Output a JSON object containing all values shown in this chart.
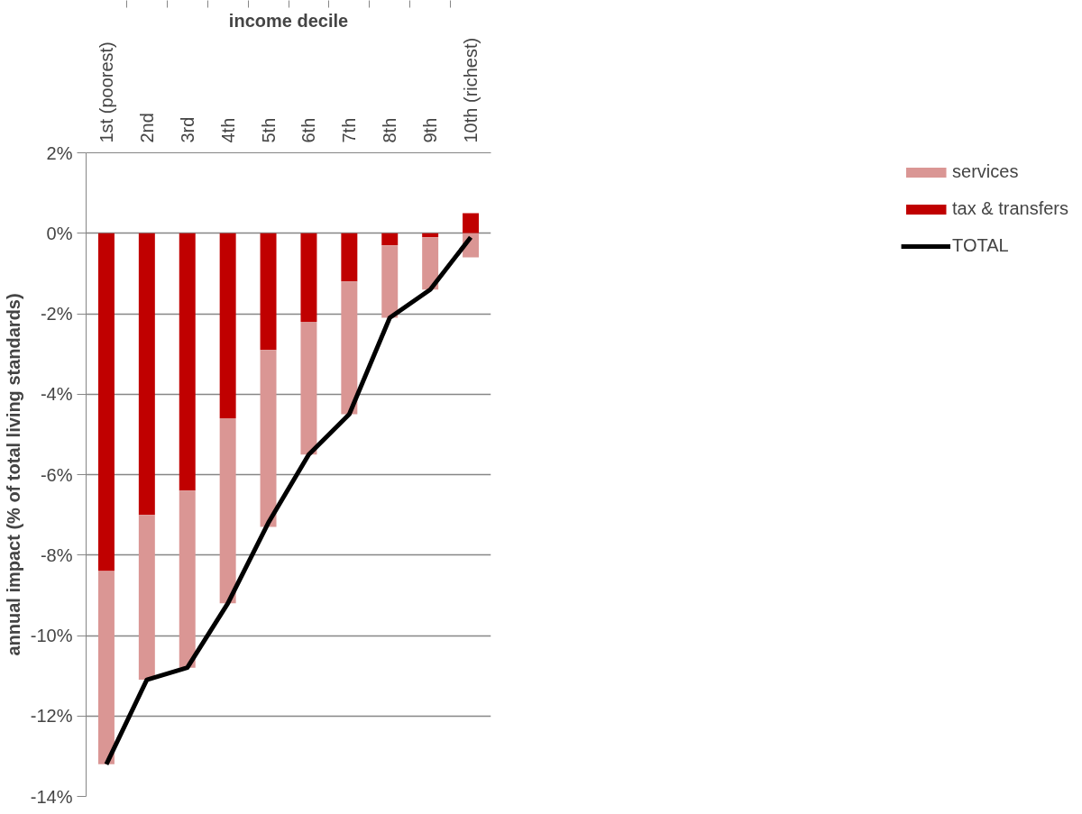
{
  "chart_data": {
    "type": "bar",
    "stacked": true,
    "xlabel": "income decile",
    "ylabel": "annual impact (% of total living standards)",
    "categories": [
      "1st (poorest)",
      "2nd",
      "3rd",
      "4th",
      "5th",
      "6th",
      "7th",
      "8th",
      "9th",
      "10th (richest)"
    ],
    "series": [
      {
        "name": "tax & transfers",
        "color": "#c00000",
        "values": [
          -8.4,
          -7.0,
          -6.4,
          -4.6,
          -2.9,
          -2.2,
          -1.2,
          -0.3,
          -0.1,
          0.5
        ]
      },
      {
        "name": "services",
        "color": "#da9694",
        "values": [
          -4.8,
          -4.1,
          -4.4,
          -4.6,
          -4.4,
          -3.3,
          -3.3,
          -1.8,
          -1.3,
          -0.6
        ]
      },
      {
        "name": "TOTAL",
        "type": "line",
        "color": "#000000",
        "values": [
          -13.2,
          -11.1,
          -10.8,
          -9.2,
          -7.2,
          -5.5,
          -4.5,
          -2.1,
          -1.4,
          -0.1
        ]
      }
    ],
    "ylim": [
      -14,
      2
    ],
    "yticks": [
      {
        "value": -14,
        "label": "-14%"
      },
      {
        "value": -12,
        "label": "-12%"
      },
      {
        "value": -10,
        "label": "-10%"
      },
      {
        "value": -8,
        "label": "-8%"
      },
      {
        "value": -6,
        "label": "-6%"
      },
      {
        "value": -4,
        "label": "-4%"
      },
      {
        "value": -2,
        "label": "-2%"
      },
      {
        "value": 0,
        "label": "0%"
      },
      {
        "value": 2,
        "label": "2%"
      }
    ],
    "grid": "y",
    "legend": "right",
    "marker": "none",
    "line_style": "solid"
  }
}
